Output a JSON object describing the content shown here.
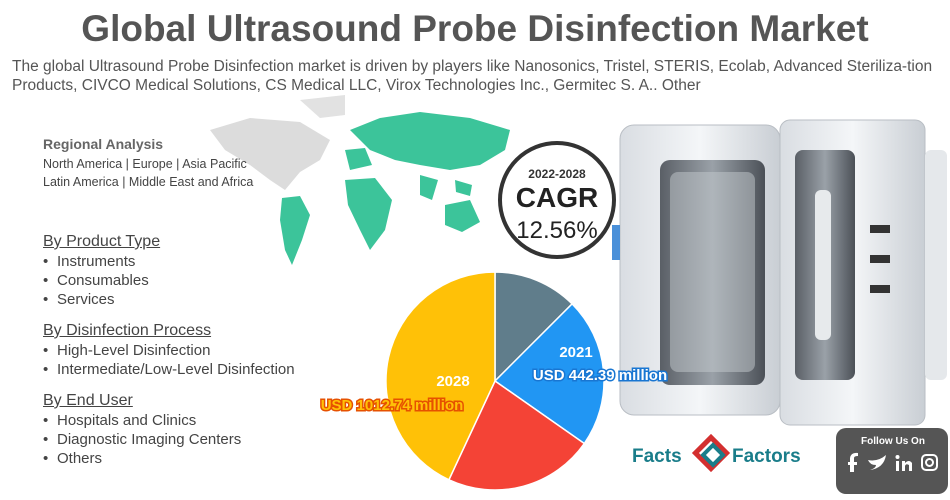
{
  "header": {
    "title": "Global Ultrasound Probe Disinfection Market",
    "description": "The global Ultrasound Probe Disinfection market is driven by players like Nanosonics, Tristel, STERIS, Ecolab, Advanced Steriliza-tion Products, CIVCO Medical Solutions, CS Medical LLC, Virox Technologies Inc., Germitec S. A.. Other"
  },
  "regional": {
    "title": "Regional Analysis",
    "lines": [
      "North America | Europe | Asia Pacific",
      "Latin America | Middle East and Africa"
    ]
  },
  "segments": [
    {
      "title": "By Product Type",
      "items": [
        "Instruments",
        "Consumables",
        "Services"
      ]
    },
    {
      "title": "By Disinfection Process",
      "items": [
        "High-Level Disinfection",
        "Intermediate/Low-Level Disinfection"
      ]
    },
    {
      "title": "By End User",
      "items": [
        "Hospitals and Clinics",
        "Diagnostic Imaging Centers",
        "Others"
      ]
    }
  ],
  "cagr": {
    "period": "2022-2028",
    "label": "CAGR",
    "value": "12.56%"
  },
  "market": {
    "start": {
      "year": "2021",
      "value": "USD 442.39 million"
    },
    "end": {
      "year": "2028",
      "value": "USD 1012.74 million"
    }
  },
  "brand": {
    "left": "Facts",
    "right": "Factors"
  },
  "social": {
    "title": "Follow Us On"
  }
}
